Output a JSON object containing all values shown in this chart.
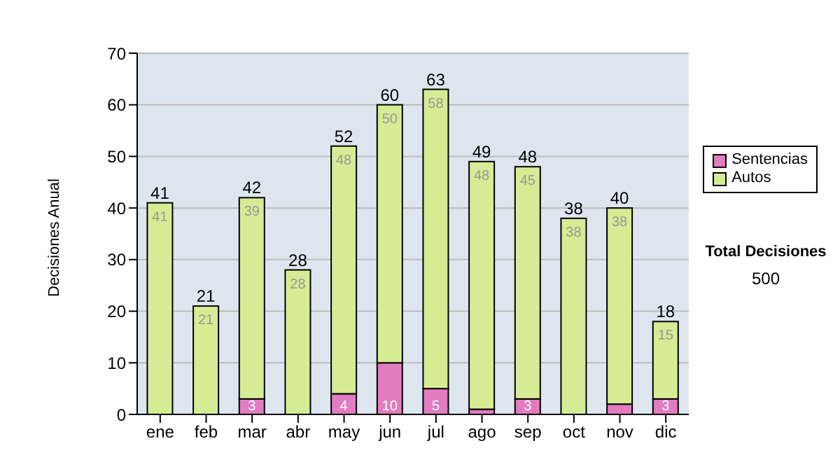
{
  "chart_data": {
    "type": "bar",
    "stacked": true,
    "ylabel": "Decisiones Anual",
    "categories": [
      "ene",
      "feb",
      "mar",
      "abr",
      "may",
      "jun",
      "jul",
      "ago",
      "sep",
      "oct",
      "nov",
      "dic"
    ],
    "series": [
      {
        "name": "Sentencias",
        "color": "#e07cbf",
        "values": [
          0,
          0,
          3,
          0,
          4,
          10,
          5,
          1,
          3,
          0,
          2,
          3
        ],
        "value_labels": [
          null,
          null,
          "3",
          null,
          "4",
          "10",
          "5",
          null,
          "3",
          null,
          null,
          "3"
        ]
      },
      {
        "name": "Autos",
        "color": "#d6ec94",
        "values": [
          41,
          21,
          39,
          28,
          48,
          50,
          58,
          48,
          45,
          38,
          38,
          15
        ],
        "value_labels": [
          "41",
          "21",
          "39",
          "28",
          "48",
          "50",
          "58",
          "48",
          "45",
          "38",
          "38",
          "15"
        ]
      }
    ],
    "totals": [
      "41",
      "21",
      "42",
      "28",
      "52",
      "60",
      "63",
      "49",
      "48",
      "38",
      "40",
      "18"
    ],
    "ylim": [
      0,
      70
    ],
    "yticks": [
      0,
      10,
      20,
      30,
      40,
      50,
      60,
      70
    ],
    "grid": "y",
    "legend": "right",
    "annotations": [
      "Total Decisiones",
      "500"
    ]
  }
}
